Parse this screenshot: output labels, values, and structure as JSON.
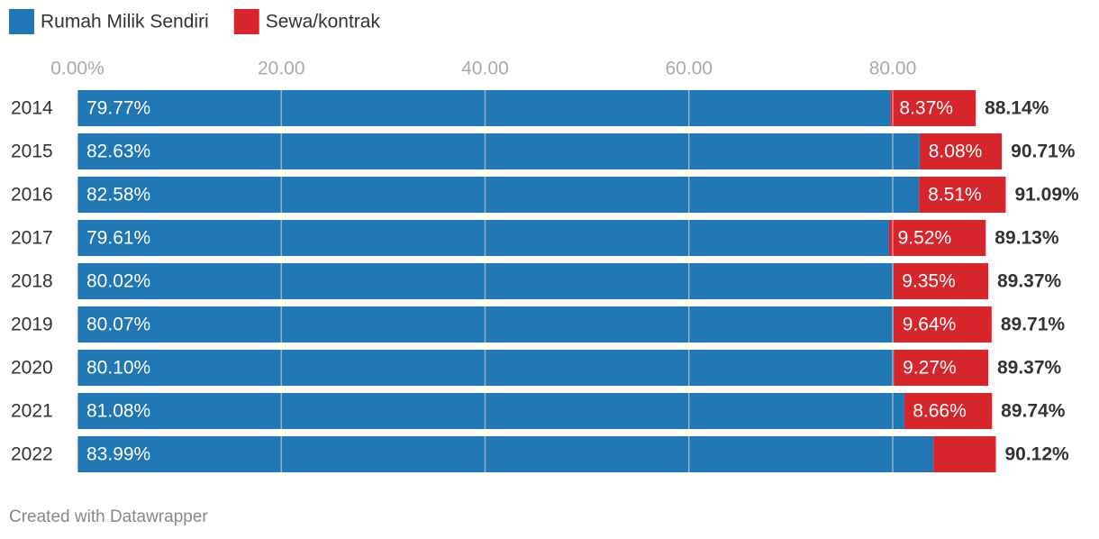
{
  "chart_data": {
    "type": "stacked_bar_horizontal",
    "categories": [
      "2014",
      "2015",
      "2016",
      "2017",
      "2018",
      "2019",
      "2020",
      "2021",
      "2022"
    ],
    "series": [
      {
        "name": "Rumah Milik Sendiri",
        "color": "#2077b4",
        "values": [
          79.77,
          82.63,
          82.58,
          79.61,
          80.02,
          80.07,
          80.1,
          81.08,
          83.99
        ],
        "value_labels": [
          "79.77%",
          "82.63%",
          "82.58%",
          "79.61%",
          "80.02%",
          "80.07%",
          "80.10%",
          "81.08%",
          "83.99%"
        ]
      },
      {
        "name": "Sewa/kontrak",
        "color": "#d7262b",
        "values": [
          8.37,
          8.08,
          8.51,
          9.52,
          9.35,
          9.64,
          9.27,
          8.66,
          6.13
        ],
        "value_labels": [
          "8.37%",
          "8.08%",
          "8.51%",
          "9.52%",
          "9.35%",
          "9.64%",
          "9.27%",
          "8.66%",
          null
        ]
      }
    ],
    "totals": [
      88.14,
      90.71,
      91.09,
      89.13,
      89.37,
      89.71,
      89.37,
      89.74,
      90.12
    ],
    "total_labels": [
      "88.14%",
      "90.71%",
      "91.09%",
      "89.13%",
      "89.37%",
      "89.71%",
      "89.37%",
      "89.74%",
      "90.12%"
    ],
    "xlim": [
      0,
      90
    ],
    "xticks": [
      {
        "value": 0,
        "label": "0.00%"
      },
      {
        "value": 20,
        "label": "20.00"
      },
      {
        "value": 40,
        "label": "40.00"
      },
      {
        "value": 60,
        "label": "60.00"
      },
      {
        "value": 80,
        "label": "80.00"
      }
    ],
    "grid": true,
    "legend": "top-left",
    "footer": "Created with Datawrapper"
  }
}
